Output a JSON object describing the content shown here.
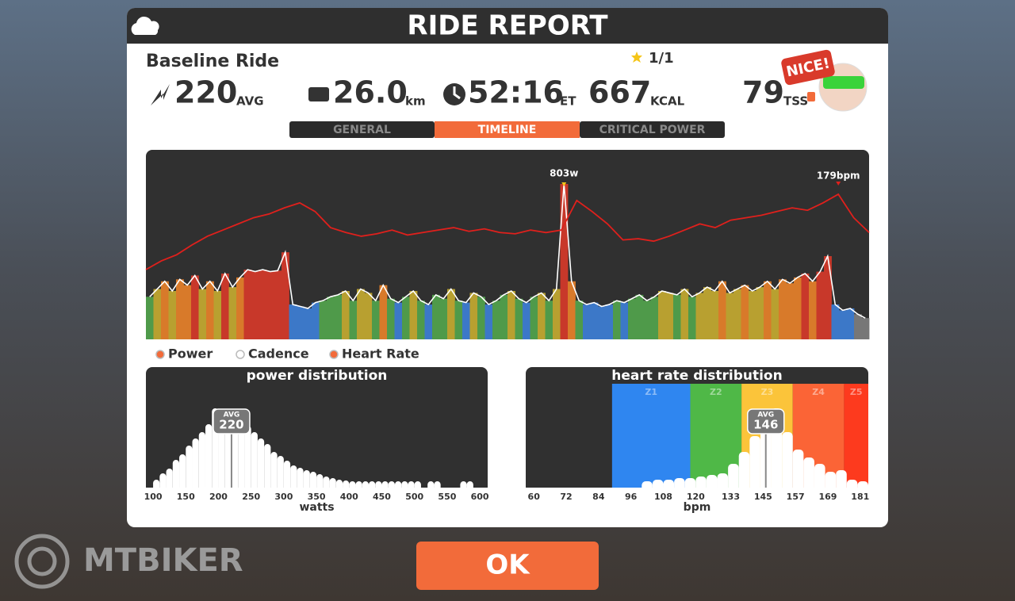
{
  "header": {
    "title": "RIDE REPORT"
  },
  "ride": {
    "name": "Baseline Ride",
    "rating": "1/1"
  },
  "stats": [
    {
      "value": "220",
      "unit": "AVG"
    },
    {
      "value": "26.0",
      "unit": "km"
    },
    {
      "value": "52:16",
      "unit": "ET"
    },
    {
      "value": "667",
      "unit": "KCAL"
    },
    {
      "value": "79",
      "unit": "TSS"
    }
  ],
  "badge": "NICE!",
  "tabs": [
    "GENERAL",
    "TIMELINE",
    "CRITICAL POWER"
  ],
  "active_tab": 1,
  "timeline": {
    "power_peak_label": "803w",
    "hr_peak_label": "179bpm",
    "legend": [
      "Power",
      "Cadence",
      "Heart Rate"
    ],
    "power": [
      220,
      260,
      300,
      250,
      310,
      280,
      330,
      260,
      300,
      250,
      340,
      270,
      320,
      360,
      350,
      360,
      350,
      355,
      450,
      180,
      170,
      160,
      190,
      200,
      220,
      230,
      250,
      200,
      260,
      240,
      200,
      280,
      210,
      190,
      220,
      250,
      200,
      180,
      230,
      210,
      260,
      200,
      190,
      240,
      220,
      180,
      200,
      230,
      250,
      210,
      190,
      220,
      240,
      200,
      260,
      803,
      300,
      200,
      180,
      190,
      170,
      180,
      200,
      190,
      210,
      230,
      200,
      220,
      250,
      240,
      230,
      260,
      220,
      240,
      270,
      250,
      300,
      240,
      260,
      280,
      250,
      270,
      300,
      260,
      310,
      290,
      320,
      340,
      300,
      350,
      430,
      180,
      150,
      160,
      130,
      110
    ],
    "heart_rate": [
      118,
      125,
      130,
      138,
      145,
      150,
      155,
      160,
      163,
      168,
      172,
      165,
      152,
      148,
      145,
      147,
      150,
      146,
      148,
      150,
      152,
      149,
      151,
      148,
      147,
      150,
      148,
      150,
      174,
      165,
      155,
      142,
      143,
      141,
      145,
      150,
      155,
      152,
      158,
      160,
      162,
      165,
      168,
      166,
      172,
      179,
      160,
      148
    ]
  },
  "power_distribution": {
    "title": "power distribution",
    "x_label": "watts",
    "xlim": [
      89,
      612
    ],
    "xticks": [
      100,
      150,
      200,
      250,
      300,
      350,
      400,
      450,
      500,
      550,
      600
    ],
    "bins": [
      100,
      110,
      120,
      130,
      140,
      150,
      160,
      170,
      180,
      190,
      200,
      210,
      220,
      230,
      240,
      250,
      260,
      270,
      280,
      290,
      300,
      310,
      320,
      330,
      340,
      350,
      360,
      370,
      380,
      390,
      400,
      410,
      420,
      430,
      440,
      450,
      460,
      470,
      480,
      490,
      500,
      510,
      520,
      530,
      540,
      550,
      560,
      570,
      580,
      590,
      600
    ],
    "values": [
      10,
      18,
      24,
      35,
      42,
      53,
      62,
      70,
      80,
      100,
      95,
      98,
      90,
      85,
      78,
      70,
      62,
      55,
      45,
      40,
      34,
      28,
      25,
      22,
      20,
      17,
      14,
      12,
      10,
      9,
      8,
      8,
      8,
      8,
      8,
      8,
      8,
      8,
      8,
      8,
      8,
      0,
      8,
      8,
      0,
      0,
      0,
      8,
      8,
      0
    ],
    "avg_label": "AVG",
    "avg": 220
  },
  "hr_distribution": {
    "title": "heart rate distribution",
    "x_label": "bpm",
    "xlim": [
      57,
      184
    ],
    "xticks": [
      60,
      72,
      84,
      96,
      108,
      120,
      133,
      145,
      157,
      169,
      181
    ],
    "zones": [
      {
        "name": "Z1",
        "from": 89,
        "to": 118,
        "color": "#2f86f0"
      },
      {
        "name": "Z2",
        "from": 118,
        "to": 137,
        "color": "#4fb847"
      },
      {
        "name": "Z3",
        "from": 137,
        "to": 156,
        "color": "#fbc43a"
      },
      {
        "name": "Z4",
        "from": 156,
        "to": 175,
        "color": "#fb6436"
      },
      {
        "name": "Z5",
        "from": 175,
        "to": 184,
        "color": "#fd3a1e"
      }
    ],
    "bins": [
      100,
      104,
      108,
      112,
      116,
      120,
      124,
      128,
      132,
      136,
      140,
      144,
      148,
      152,
      156,
      160,
      164,
      168,
      172,
      176,
      180,
      184
    ],
    "values": [
      8,
      10,
      10,
      12,
      12,
      14,
      16,
      18,
      30,
      45,
      65,
      85,
      100,
      70,
      48,
      38,
      30,
      20,
      22,
      10,
      8
    ],
    "avg_label": "AVG",
    "avg": 146
  },
  "button": "OK",
  "watermark": "MTBIKER"
}
